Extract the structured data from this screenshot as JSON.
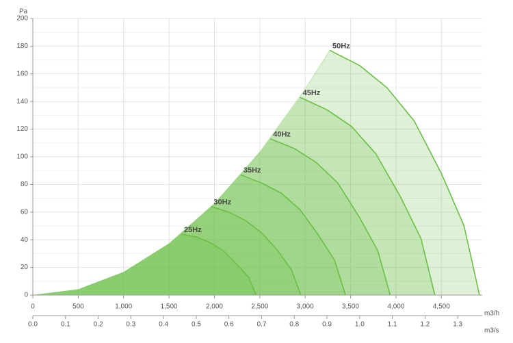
{
  "chart_data": {
    "type": "line",
    "y_label": "Pa",
    "x_label": "m3/h",
    "x2_label": "m3/s",
    "xlim": [
      0,
      4950
    ],
    "xticks": [
      0,
      500,
      {
        "value": 1000,
        "label": "1,000"
      },
      {
        "value": 1500,
        "label": "1,500"
      },
      {
        "value": 2000,
        "label": "2,000"
      },
      {
        "value": 2500,
        "label": "2,500"
      },
      {
        "value": 3000,
        "label": "3,000"
      },
      {
        "value": 3500,
        "label": "3,500"
      },
      {
        "value": 4000,
        "label": "4,000"
      },
      {
        "value": 4500,
        "label": "4,500"
      }
    ],
    "x2lim": [
      0,
      1.375
    ],
    "x2ticks": [
      {
        "value": 0,
        "label": "0.0"
      },
      0.1,
      0.2,
      0.3,
      0.4,
      0.5,
      0.6,
      0.7,
      0.8,
      0.9,
      {
        "value": 1,
        "label": "1.0"
      },
      1.1,
      1.2,
      1.3
    ],
    "ylim": [
      0,
      200
    ],
    "yticks": [
      0,
      20,
      40,
      60,
      80,
      100,
      120,
      140,
      160,
      180,
      200
    ],
    "yminorticks": [
      10,
      30,
      50,
      70,
      90,
      110,
      130,
      150,
      170,
      190
    ],
    "grid": true,
    "color": "#6abf45",
    "system_curve": {
      "x": [
        0,
        500,
        1000,
        1500,
        2000,
        2500,
        3000,
        3270
      ],
      "values": [
        0,
        4.1,
        16.6,
        37.2,
        66.2,
        103.4,
        149,
        177
      ]
    },
    "series": [
      {
        "name": "50Hz",
        "x": [
          3270,
          3600,
          3900,
          4200,
          4500,
          4750,
          4920
        ],
        "values": [
          177,
          166,
          150,
          126,
          88,
          50,
          0
        ]
      },
      {
        "name": "45Hz",
        "x": [
          2943,
          3240,
          3510,
          3780,
          4050,
          4275,
          4428
        ],
        "values": [
          143,
          134,
          122,
          102,
          71,
          41,
          0
        ]
      },
      {
        "name": "40Hz",
        "x": [
          2616,
          2880,
          3120,
          3360,
          3600,
          3800,
          3936
        ],
        "values": [
          113,
          106,
          96,
          81,
          56,
          32,
          0
        ]
      },
      {
        "name": "35Hz",
        "x": [
          2289,
          2520,
          2730,
          2940,
          3150,
          3325,
          3444
        ],
        "values": [
          87,
          81,
          74,
          62,
          43,
          25,
          0
        ]
      },
      {
        "name": "30Hz",
        "x": [
          1962,
          2160,
          2340,
          2520,
          2700,
          2850,
          2952
        ],
        "values": [
          64,
          60,
          54,
          45,
          32,
          18,
          0
        ]
      },
      {
        "name": "25Hz",
        "x": [
          1635,
          1800,
          1950,
          2100,
          2250,
          2375,
          2460
        ],
        "values": [
          44,
          42,
          38,
          32,
          22,
          13,
          0
        ]
      }
    ]
  }
}
